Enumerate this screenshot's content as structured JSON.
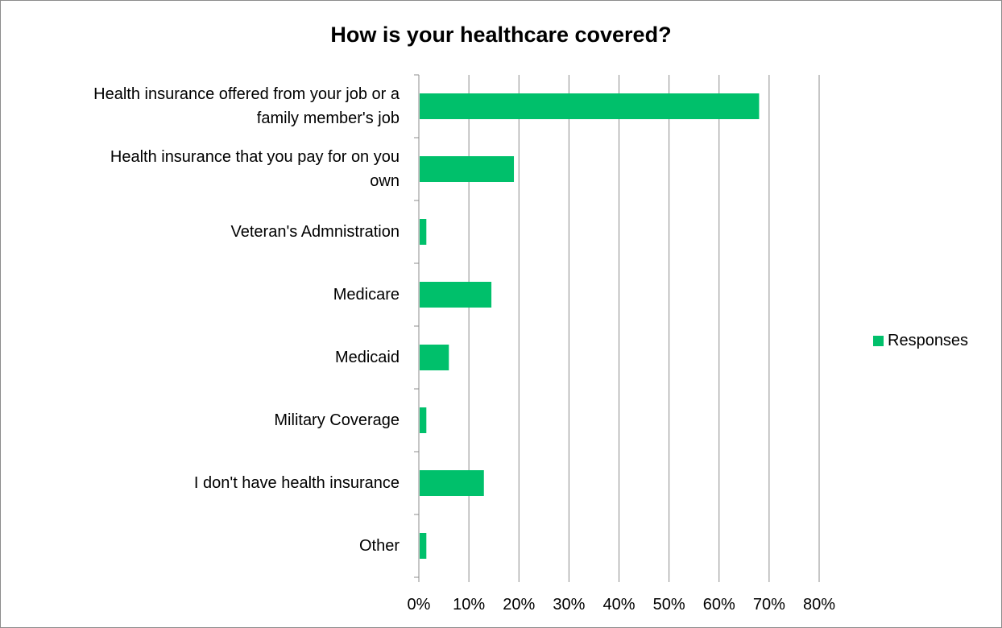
{
  "chart_data": {
    "type": "bar",
    "orientation": "horizontal",
    "title": "How is your healthcare covered?",
    "categories": [
      "Health insurance offered from your job or a family member's job",
      "Health insurance that you pay for on you own",
      "Veteran's Admnistration",
      "Medicare",
      "Medicaid",
      "Military Coverage",
      "I don't have health insurance",
      "Other"
    ],
    "category_lines": [
      [
        "Health insurance offered from your job or a",
        "family member's job"
      ],
      [
        "Health insurance that you pay for on you",
        "own"
      ],
      [
        "Veteran's Admnistration"
      ],
      [
        "Medicare"
      ],
      [
        "Medicaid"
      ],
      [
        "Military Coverage"
      ],
      [
        "I don't have health insurance"
      ],
      [
        "Other"
      ]
    ],
    "series": [
      {
        "name": "Responses",
        "values": [
          68,
          19,
          1.5,
          14.5,
          6,
          1.5,
          13,
          1.5
        ],
        "color": "#00c06b"
      }
    ],
    "x_ticks": [
      "0%",
      "10%",
      "20%",
      "30%",
      "40%",
      "50%",
      "60%",
      "70%",
      "80%"
    ],
    "xlim": [
      0,
      80
    ],
    "grid": true,
    "legend_position": "right"
  }
}
